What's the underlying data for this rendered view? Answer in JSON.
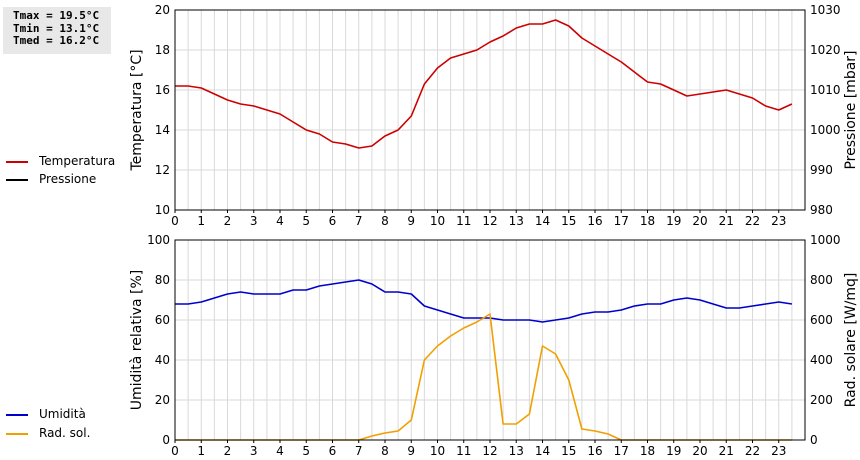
{
  "stats": {
    "tmax": "Tmax = 19.5°C",
    "tmin": "Tmin = 13.1°C",
    "tmed": "Tmed = 16.2°C"
  },
  "colors": {
    "temperature": "#cc0000",
    "pressure": "#000000",
    "humidity": "#0000cc",
    "radiation": "#f0a000",
    "grid": "#d9d9d9",
    "axis": "#000000"
  },
  "chart_data": [
    {
      "type": "line",
      "grid": true,
      "xlim": [
        0,
        24
      ],
      "x_ticks": [
        "0",
        "1",
        "2",
        "3",
        "4",
        "5",
        "6",
        "7",
        "8",
        "9",
        "10",
        "11",
        "12",
        "13",
        "14",
        "15",
        "16",
        "17",
        "18",
        "19",
        "20",
        "21",
        "22",
        "23"
      ],
      "ylabel": "Temperatura [°C]",
      "ylim": [
        10,
        20
      ],
      "y_ticks": [
        "10",
        "12",
        "14",
        "16",
        "18",
        "20"
      ],
      "y2label": "Pressione [mbar]",
      "y2lim": [
        980,
        1030
      ],
      "y2_ticks": [
        "980",
        "990",
        "1000",
        "1010",
        "1020",
        "1030"
      ],
      "legend_position": "left",
      "series": [
        {
          "name": "Temperatura",
          "axis": "left",
          "x": [
            0,
            0.5,
            1,
            1.5,
            2,
            2.5,
            3,
            3.5,
            4,
            4.5,
            5,
            5.5,
            6,
            6.5,
            7,
            7.5,
            8,
            8.5,
            9,
            9.5,
            10,
            10.5,
            11,
            11.5,
            12,
            12.5,
            13,
            13.5,
            14,
            14.5,
            15,
            15.5,
            16,
            16.5,
            17,
            17.5,
            18,
            18.5,
            19,
            19.5,
            20,
            20.5,
            21,
            21.5,
            22,
            22.5,
            23,
            23.5
          ],
          "values": [
            16.2,
            16.2,
            16.1,
            15.8,
            15.5,
            15.3,
            15.2,
            15.0,
            14.8,
            14.4,
            14.0,
            13.8,
            13.4,
            13.3,
            13.1,
            13.2,
            13.7,
            14.0,
            14.7,
            16.3,
            17.1,
            17.6,
            17.8,
            18.0,
            18.4,
            18.7,
            19.1,
            19.3,
            19.3,
            19.5,
            19.2,
            18.6,
            18.2,
            17.8,
            17.4,
            16.9,
            16.4,
            16.3,
            16.0,
            15.7,
            15.8,
            15.9,
            16.0,
            15.8,
            15.6,
            15.2,
            15.0,
            15.3
          ]
        },
        {
          "name": "Pressione",
          "axis": "right",
          "x": [],
          "values": []
        }
      ]
    },
    {
      "type": "line",
      "grid": true,
      "xlim": [
        0,
        24
      ],
      "x_ticks": [
        "0",
        "1",
        "2",
        "3",
        "4",
        "5",
        "6",
        "7",
        "8",
        "9",
        "10",
        "11",
        "12",
        "13",
        "14",
        "15",
        "16",
        "17",
        "18",
        "19",
        "20",
        "21",
        "22",
        "23"
      ],
      "ylabel": "Umidità relativa [%]",
      "ylim": [
        0,
        100
      ],
      "y_ticks": [
        "0",
        "20",
        "40",
        "60",
        "80",
        "100"
      ],
      "y2label": "Rad. solare [W/mq]",
      "y2lim": [
        0,
        1000
      ],
      "y2_ticks": [
        "0",
        "200",
        "400",
        "600",
        "800",
        "1000"
      ],
      "legend_position": "left",
      "series": [
        {
          "name": "Umidità",
          "axis": "left",
          "x": [
            0,
            0.5,
            1,
            1.5,
            2,
            2.5,
            3,
            3.5,
            4,
            4.5,
            5,
            5.5,
            6,
            6.5,
            7,
            7.5,
            8,
            8.5,
            9,
            9.5,
            10,
            10.5,
            11,
            11.5,
            12,
            12.5,
            13,
            13.5,
            14,
            14.5,
            15,
            15.5,
            16,
            16.5,
            17,
            17.5,
            18,
            18.5,
            19,
            19.5,
            20,
            20.5,
            21,
            21.5,
            22,
            22.5,
            23,
            23.5
          ],
          "values": [
            68,
            68,
            69,
            71,
            73,
            74,
            73,
            73,
            73,
            75,
            75,
            77,
            78,
            79,
            80,
            78,
            74,
            74,
            73,
            67,
            65,
            63,
            61,
            61,
            61,
            60,
            60,
            60,
            59,
            60,
            61,
            63,
            64,
            64,
            65,
            67,
            68,
            68,
            70,
            71,
            70,
            68,
            66,
            66,
            67,
            68,
            69,
            68
          ]
        },
        {
          "name": "Rad. sol.",
          "axis": "right",
          "x": [
            0,
            0.5,
            1,
            1.5,
            2,
            2.5,
            3,
            3.5,
            4,
            4.5,
            5,
            5.5,
            6,
            6.5,
            7,
            7.5,
            8,
            8.5,
            9,
            9.5,
            10,
            10.5,
            11,
            11.5,
            12,
            12.5,
            13,
            13.5,
            14,
            14.5,
            15,
            15.5,
            16,
            16.5,
            17,
            17.5,
            18,
            18.5,
            19,
            19.5,
            20,
            20.5,
            21,
            21.5,
            22,
            22.5,
            23,
            23.5
          ],
          "values": [
            0,
            0,
            0,
            0,
            0,
            0,
            0,
            0,
            0,
            0,
            0,
            0,
            0,
            0,
            0,
            20,
            35,
            45,
            100,
            400,
            470,
            520,
            560,
            590,
            630,
            80,
            80,
            130,
            470,
            430,
            300,
            55,
            45,
            30,
            0,
            0,
            0,
            0,
            0,
            0,
            0,
            0,
            0,
            0,
            0,
            0,
            0,
            0
          ]
        }
      ]
    }
  ]
}
